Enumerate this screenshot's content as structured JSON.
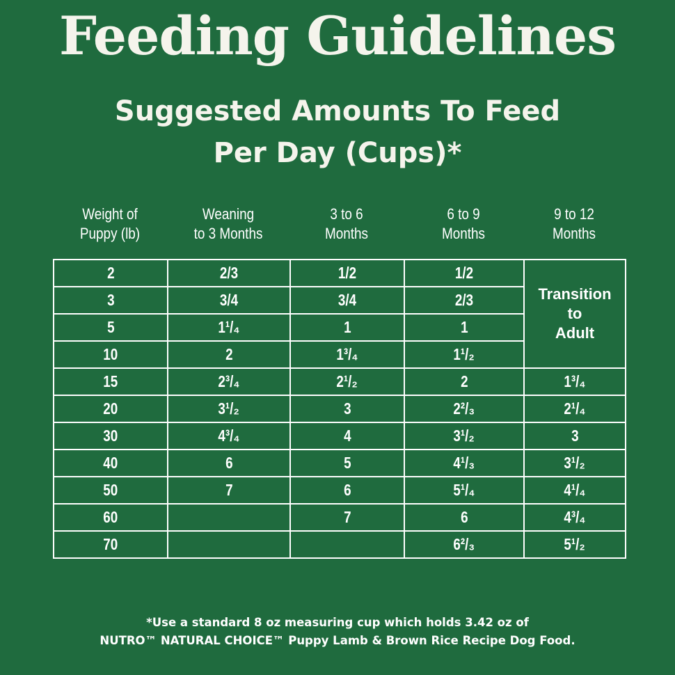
{
  "title": "Feeding Guidelines",
  "subtitle": {
    "line1": "Suggested Amounts To Feed",
    "line2": "Per Day (Cups)*"
  },
  "columns": [
    {
      "line1": "Weight of",
      "line2": "Puppy (lb)"
    },
    {
      "line1": "Weaning",
      "line2": "to 3 Months"
    },
    {
      "line1": "3 to 6",
      "line2": "Months"
    },
    {
      "line1": "6 to 9",
      "line2": "Months"
    },
    {
      "line1": "9 to 12",
      "line2": "Months"
    }
  ],
  "transition": {
    "line1": "Transition",
    "line2": "to",
    "line3": "Adult"
  },
  "rows": [
    [
      "2",
      "2/3",
      "1/2",
      "1/2",
      null
    ],
    [
      "3",
      "3/4",
      "3/4",
      "2/3",
      null
    ],
    [
      "5",
      "1¹/₄",
      "1",
      "1",
      null
    ],
    [
      "10",
      "2",
      "1³/₄",
      "1¹/₂",
      null
    ],
    [
      "15",
      "2³/₄",
      "2¹/₂",
      "2",
      "1³/₄"
    ],
    [
      "20",
      "3¹/₂",
      "3",
      "2²/₃",
      "2¹/₄"
    ],
    [
      "30",
      "4³/₄",
      "4",
      "3¹/₂",
      "3"
    ],
    [
      "40",
      "6",
      "5",
      "4¹/₃",
      "3¹/₂"
    ],
    [
      "50",
      "7",
      "6",
      "5¹/₄",
      "4¹/₄"
    ],
    [
      "60",
      "",
      "7",
      "6",
      "4³/₄"
    ],
    [
      "70",
      "",
      "",
      "6²/₃",
      "5¹/₂"
    ]
  ],
  "footnote": {
    "line1": "*Use a standard 8 oz measuring cup which holds 3.42 oz of",
    "line2": "NUTRO™ NATURAL CHOICE™ Puppy Lamb & Brown Rice Recipe Dog Food."
  },
  "colors": {
    "background": "#1f6b3e",
    "text": "#ffffff"
  }
}
